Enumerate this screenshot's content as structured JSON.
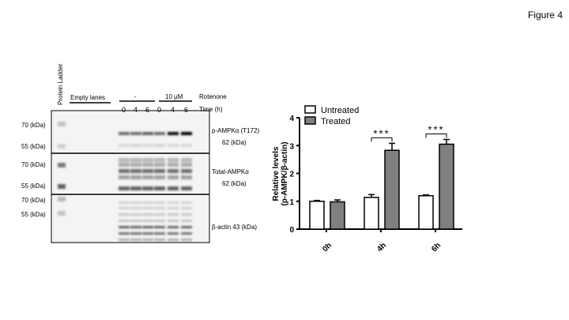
{
  "figure_title": "Figure 4",
  "blot": {
    "ladder_label": "Protein Ladder",
    "empty_lanes_label": "Empty lanes",
    "treatment_groups": [
      "-",
      "10 µM"
    ],
    "treatment_label": "Rotenone",
    "time_label": "Time (h)",
    "time_points": [
      "0",
      "4",
      "6",
      "0",
      "4",
      "6"
    ],
    "mw_markers": [
      "70 (kDa)",
      "55 (kDa)",
      "70 (kDa)",
      "55 (kDa)",
      "70 (kDa)",
      "55 (kDa)"
    ],
    "panels": [
      {
        "name": "p-AMPKα (T172)",
        "size": "62 (kDa)"
      },
      {
        "name": "Total-AMPKα",
        "size": "62 (kDa)"
      },
      {
        "name": "β-actin  43 (kDa)",
        "size": ""
      }
    ]
  },
  "chart_data": {
    "type": "bar",
    "categories": [
      "0h",
      "4h",
      "6h"
    ],
    "series": [
      {
        "name": "Untreated",
        "color": "#ffffff",
        "values": [
          1.0,
          1.14,
          1.2
        ],
        "errors": [
          0.03,
          0.1,
          0.03
        ]
      },
      {
        "name": "Treated",
        "color": "#808080",
        "values": [
          0.98,
          2.83,
          3.05
        ],
        "errors": [
          0.07,
          0.25,
          0.17
        ]
      }
    ],
    "significance": [
      "",
      "***",
      "***"
    ],
    "ylabel": [
      "Relative levels",
      "(p-AMPK/β-actin)"
    ],
    "yticks": [
      0,
      1,
      2,
      3,
      4
    ],
    "ylim": [
      0,
      4
    ],
    "legend_position": "top-left"
  }
}
